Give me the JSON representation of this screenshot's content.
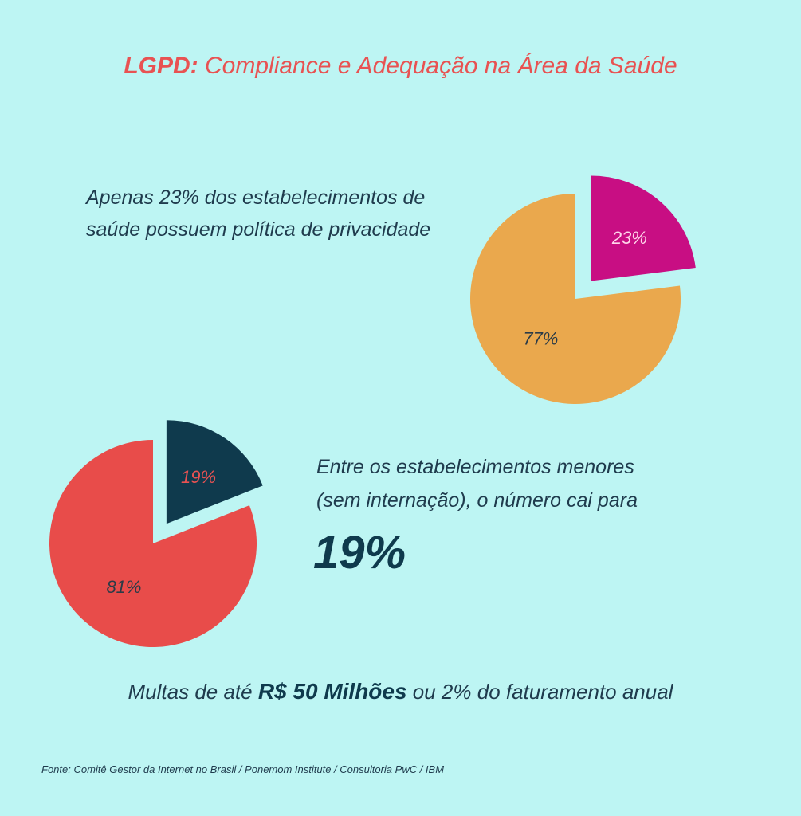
{
  "title": {
    "strong": "LGPD:",
    "rest": " Compliance e Adequação na Área da Saúde"
  },
  "statement1": {
    "line1": "Apenas 23% dos estabelecimentos de",
    "line2": "saúde possuem política de privacidade"
  },
  "statement2": {
    "line1": "Entre os estabelecimentos menores",
    "line2": "(sem internação), o número cai para",
    "highlight": "19%"
  },
  "fines": {
    "prefix": "Multas de até ",
    "amount": "R$ 50 Milhões",
    "suffix": " ou 2% do faturamento anual"
  },
  "source": "Fonte: Comitê Gestor da Internet no Brasil / Ponemom Institute / Consultoria PwC / IBM",
  "colors": {
    "background": "#bdf5f3",
    "title": "#e85252",
    "pie1_major": "#eaa84d",
    "pie1_minor": "#c80e83",
    "pie2_major": "#e84c4a",
    "pie2_minor": "#0f3a4d"
  },
  "chart_data": [
    {
      "type": "pie",
      "slices": [
        {
          "label": "23%",
          "value": 23,
          "color": "#c80e83",
          "exploded": true,
          "label_color": "#ffd6ea"
        },
        {
          "label": "77%",
          "value": 77,
          "color": "#eaa84d",
          "exploded": false,
          "label_color": "#2b3b47"
        }
      ]
    },
    {
      "type": "pie",
      "slices": [
        {
          "label": "19%",
          "value": 19,
          "color": "#0f3a4d",
          "exploded": true,
          "label_color": "#e85252"
        },
        {
          "label": "81%",
          "value": 81,
          "color": "#e84c4a",
          "exploded": false,
          "label_color": "#2b3b47"
        }
      ]
    }
  ]
}
